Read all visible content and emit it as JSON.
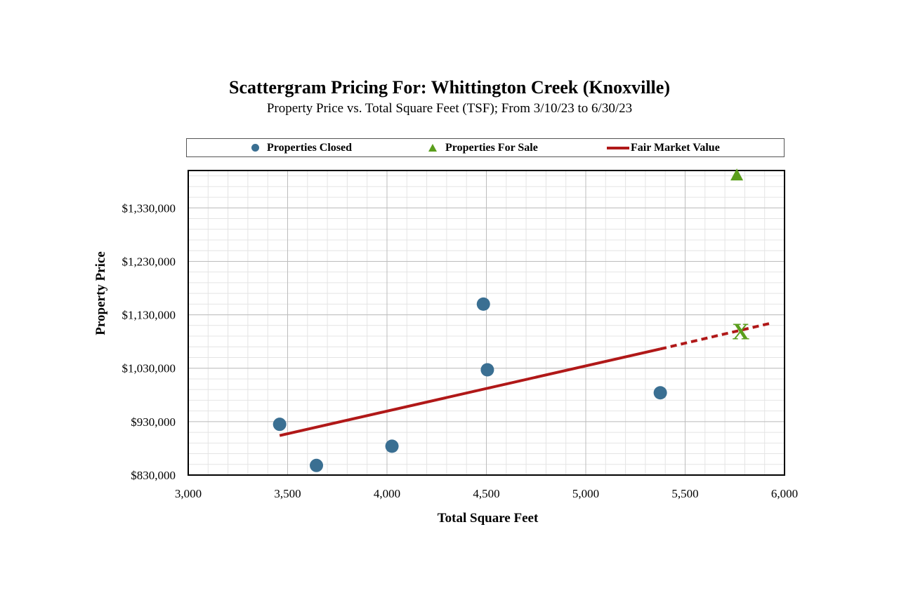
{
  "chart_data": {
    "type": "scatter",
    "title": "Scattergram Pricing For: Whittington Creek (Knoxville)",
    "subtitle": "Property Price vs. Total Square Feet (TSF); From 3/10/23 to 6/30/23",
    "xlabel": "Total Square Feet",
    "ylabel": "Property Price",
    "xlim": [
      3000,
      6000
    ],
    "ylim": [
      830000,
      1400000
    ],
    "x_ticks": [
      3000,
      3500,
      4000,
      4500,
      5000,
      5500,
      6000
    ],
    "x_tick_labels": [
      "3,000",
      "3,500",
      "4,000",
      "4,500",
      "5,000",
      "5,500",
      "6,000"
    ],
    "y_ticks": [
      830000,
      930000,
      1030000,
      1130000,
      1230000,
      1330000
    ],
    "y_tick_labels": [
      "$830,000",
      "$930,000",
      "$1,030,000",
      "$1,130,000",
      "$1,230,000",
      "$1,330,000"
    ],
    "grid": true,
    "legend_position": "top",
    "series": [
      {
        "name": "Properties Closed",
        "marker": "circle",
        "color": "#3a6f92",
        "points": [
          {
            "x": 3460,
            "y": 925000
          },
          {
            "x": 3645,
            "y": 848000
          },
          {
            "x": 4025,
            "y": 884000
          },
          {
            "x": 4485,
            "y": 1150000
          },
          {
            "x": 4505,
            "y": 1027000
          },
          {
            "x": 5375,
            "y": 984000
          }
        ]
      },
      {
        "name": "Properties For Sale",
        "marker": "triangle",
        "color": "#5a9e1c",
        "points": [
          {
            "x": 5760,
            "y": 1392000
          }
        ]
      },
      {
        "name": "Fair Market Value",
        "type": "line",
        "color": "#b01818",
        "solid": [
          {
            "x": 3460,
            "y": 904000
          },
          {
            "x": 5375,
            "y": 1066000
          }
        ],
        "dashed": [
          {
            "x": 5375,
            "y": 1066000
          },
          {
            "x": 5940,
            "y": 1115000
          }
        ]
      }
    ],
    "annotations": [
      {
        "label": "X",
        "x": 5780,
        "y": 1100000,
        "color": "#5a9e1c"
      }
    ]
  }
}
